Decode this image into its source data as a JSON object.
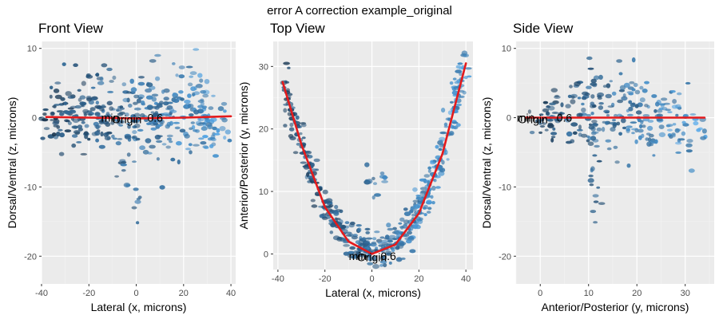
{
  "figure_title": "error A correction example_original",
  "colors": {
    "panel_bg": "#ebebeb",
    "grid_major": "#ffffff",
    "grid_minor": "#f3f3f3",
    "fit_line": "#e41a1c",
    "points_light": "#56b1f7",
    "points_dark": "#132b43"
  },
  "chart_data": [
    {
      "type": "scatter",
      "title": "Front View",
      "xlabel": "Lateral (x, microns)",
      "ylabel": "Dorsal/Ventral (z, microns)",
      "xlim": [
        -40,
        42
      ],
      "ylim": [
        -24,
        11
      ],
      "xticks": [
        -40,
        -20,
        0,
        20,
        40
      ],
      "yticks": [
        -20,
        -10,
        0,
        10
      ],
      "grid": true,
      "fit_line": [
        [
          -38,
          0.1
        ],
        [
          -20,
          0.0
        ],
        [
          0,
          -0.1
        ],
        [
          20,
          0.0
        ],
        [
          40,
          0.2
        ]
      ],
      "annotations": [
        {
          "text": "min",
          "x": -11,
          "y": 0
        },
        {
          "text": "Origin",
          "x": -4,
          "y": -0.2
        },
        {
          "text": "0.6",
          "x": 8,
          "y": 0
        }
      ],
      "clusters": [
        {
          "x": -30,
          "y": 0,
          "sx": 5,
          "sy": 2,
          "n": 60
        },
        {
          "x": -15,
          "y": 0,
          "sx": 7,
          "sy": 2.5,
          "n": 70
        },
        {
          "x": 0,
          "y": 0,
          "sx": 8,
          "sy": 2.5,
          "n": 80
        },
        {
          "x": 15,
          "y": 0,
          "sx": 7,
          "sy": 2.5,
          "n": 70
        },
        {
          "x": 30,
          "y": -1,
          "sx": 5,
          "sy": 2.5,
          "n": 60
        },
        {
          "x": -20,
          "y": 5,
          "sx": 4,
          "sy": 2.5,
          "n": 25
        },
        {
          "x": 22,
          "y": 4,
          "sx": 5,
          "sy": 2.5,
          "n": 25
        },
        {
          "x": -5,
          "y": -7,
          "sx": 1,
          "sy": 1.5,
          "n": 8
        },
        {
          "x": 0,
          "y": -13,
          "sx": 0.7,
          "sy": 1.5,
          "n": 6
        },
        {
          "x": 8,
          "y": 2,
          "sx": 1.5,
          "sy": 5,
          "n": 10
        }
      ]
    },
    {
      "type": "scatter",
      "title": "Top View",
      "xlabel": "Lateral (x, microns)",
      "ylabel": "Anterior/Posterior (y, microns)",
      "xlim": [
        -42,
        43
      ],
      "ylim": [
        -2.5,
        34
      ],
      "xticks": [
        -40,
        -20,
        0,
        20,
        40
      ],
      "yticks": [
        0,
        10,
        20,
        30
      ],
      "grid": true,
      "fit_line": [
        [
          -38,
          27.5
        ],
        [
          -30,
          17.5
        ],
        [
          -20,
          7.5
        ],
        [
          -10,
          2.0
        ],
        [
          0,
          0.0
        ],
        [
          10,
          1.5
        ],
        [
          20,
          6.5
        ],
        [
          30,
          16.0
        ],
        [
          40,
          30.5
        ]
      ],
      "annotations": [
        {
          "text": "min",
          "x": -6,
          "y": -0.3
        },
        {
          "text": "Origin",
          "x": 0,
          "y": -0.5
        },
        {
          "text": "0.6",
          "x": 7,
          "y": -0.3
        }
      ],
      "curve_points": {
        "x_from": -38,
        "x_to": 40,
        "spread": 1.6,
        "n": 480
      },
      "clusters": [
        {
          "x": 0,
          "y": 11,
          "sx": 1.5,
          "sy": 1.5,
          "n": 8
        },
        {
          "x": 5,
          "y": 12,
          "sx": 1,
          "sy": 1,
          "n": 5
        }
      ]
    },
    {
      "type": "scatter",
      "title": "Side View",
      "xlabel": "Anterior/Posterior (y, microns)",
      "ylabel": "Dorsal/Ventral (z, microns)",
      "xlim": [
        -5,
        36
      ],
      "ylim": [
        -24,
        11
      ],
      "xticks": [
        0,
        10,
        20,
        30
      ],
      "yticks": [
        -20,
        -10,
        0,
        10
      ],
      "grid": true,
      "fit_line": [
        [
          -3,
          0
        ],
        [
          34,
          0
        ]
      ],
      "annotations": [
        {
          "text": "min",
          "x": -3,
          "y": 0
        },
        {
          "text": "Origin",
          "x": -1.5,
          "y": -0.2
        },
        {
          "text": "0.6",
          "x": 5,
          "y": 0
        }
      ],
      "clusters": [
        {
          "x": 2,
          "y": 0,
          "sx": 2,
          "sy": 1.2,
          "n": 35
        },
        {
          "x": 10,
          "y": 0,
          "sx": 4,
          "sy": 3,
          "n": 80
        },
        {
          "x": 20,
          "y": 0,
          "sx": 5,
          "sy": 3,
          "n": 80
        },
        {
          "x": 28,
          "y": -1,
          "sx": 4,
          "sy": 2.5,
          "n": 50
        },
        {
          "x": 15,
          "y": 5,
          "sx": 4,
          "sy": 2,
          "n": 25
        },
        {
          "x": 12,
          "y": -13,
          "sx": 0.8,
          "sy": 1.5,
          "n": 6
        },
        {
          "x": 11,
          "y": -7,
          "sx": 1,
          "sy": 1.5,
          "n": 6
        }
      ]
    }
  ]
}
